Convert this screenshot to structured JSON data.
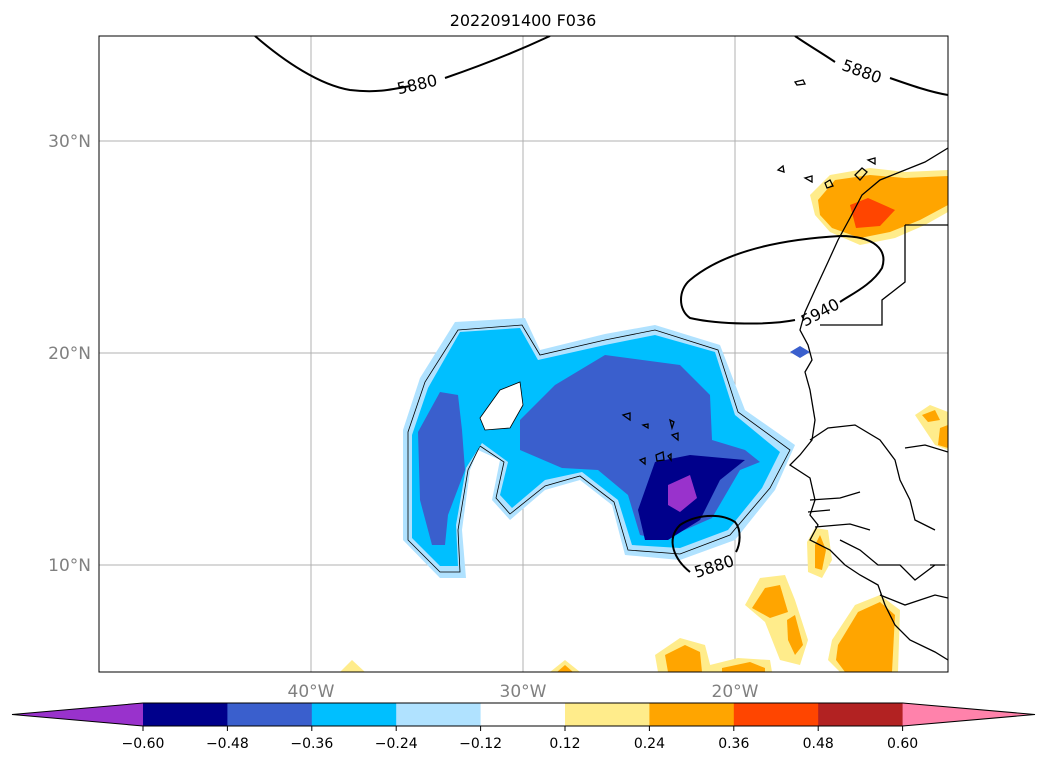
{
  "title": "2022091400 F036",
  "latitude_labels": [
    "30°N",
    "20°N",
    "10°N"
  ],
  "longitude_labels": [
    "40°W",
    "30°W",
    "20°W"
  ],
  "contour_labels": [
    "5880",
    "5880",
    "5940",
    "5880"
  ],
  "colorbar": {
    "labels": [
      "−0.60",
      "−0.48",
      "−0.36",
      "−0.24",
      "−0.12",
      "0.12",
      "0.24",
      "0.36",
      "0.48",
      "0.60"
    ],
    "colors": [
      "#9932cc",
      "#00008b",
      "#3a5fcd",
      "#00bfff",
      "#b0e2ff",
      "#ffffff",
      "#ffec8b",
      "#ffa500",
      "#ff4500",
      "#b22222",
      "#ff82ab"
    ]
  },
  "colors": {
    "purple": "#9932cc",
    "navy": "#00008b",
    "royal_blue": "#3a5fcd",
    "deep_sky_blue": "#00bfff",
    "light_blue": "#b0e2ff",
    "light_yellow": "#ffec8b",
    "orange": "#ffa500",
    "orange_red": "#ff4500",
    "firebrick": "#b22222",
    "pink": "#ff82ab",
    "gridline": "#b0b0b0"
  }
}
